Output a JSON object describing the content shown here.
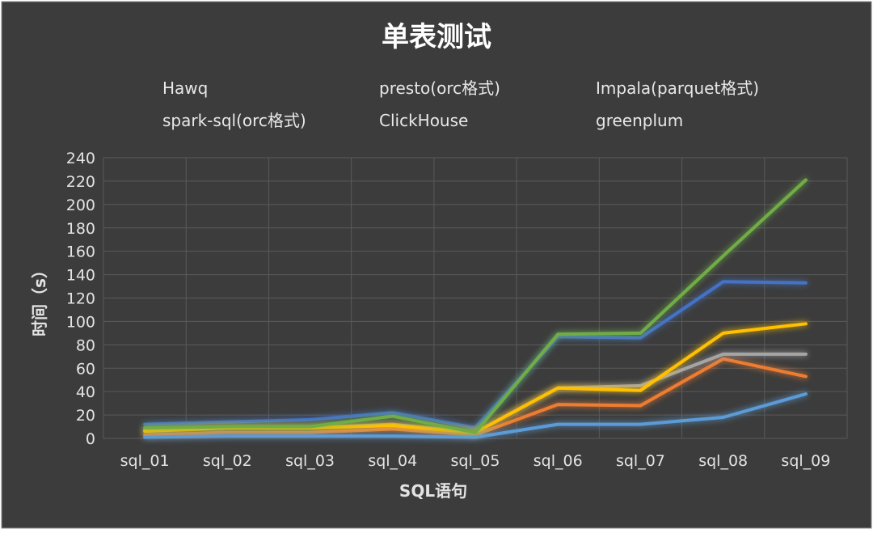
{
  "chart_data": {
    "type": "line",
    "title": "单表测试",
    "xlabel": "SQL语句",
    "ylabel": "时间（s）",
    "categories": [
      "sql_01",
      "sql_02",
      "sql_03",
      "sql_04",
      "sql_05",
      "sql_06",
      "sql_07",
      "sql_08",
      "sql_09"
    ],
    "ylim": [
      0,
      240
    ],
    "yticks": [
      0,
      20,
      40,
      60,
      80,
      100,
      120,
      140,
      160,
      180,
      200,
      220,
      240
    ],
    "grid": true,
    "legend_position": "top",
    "background_color": "#3c3c3c",
    "series": [
      {
        "name": "Hawq",
        "color": "#4472c4",
        "values": [
          12,
          14,
          16,
          22,
          9,
          87,
          86,
          134,
          133
        ]
      },
      {
        "name": "presto(orc格式)",
        "color": "#ed7d31",
        "values": [
          3,
          5,
          5,
          8,
          3,
          29,
          28,
          68,
          53
        ]
      },
      {
        "name": "Impala(parquet格式)",
        "color": "#a5a5a5",
        "values": [
          7,
          9,
          9,
          12,
          5,
          43,
          45,
          72,
          72
        ]
      },
      {
        "name": "spark-sql(orc格式)",
        "color": "#ffc000",
        "values": [
          6,
          9,
          9,
          11,
          5,
          43,
          41,
          90,
          98
        ]
      },
      {
        "name": "ClickHouse",
        "color": "#5b9bd5",
        "values": [
          1,
          2,
          2,
          2,
          1,
          12,
          12,
          18,
          38
        ]
      },
      {
        "name": "greenplum",
        "color": "#70ad47",
        "values": [
          9,
          10,
          10,
          19,
          5,
          89,
          90,
          156,
          221
        ]
      }
    ]
  }
}
